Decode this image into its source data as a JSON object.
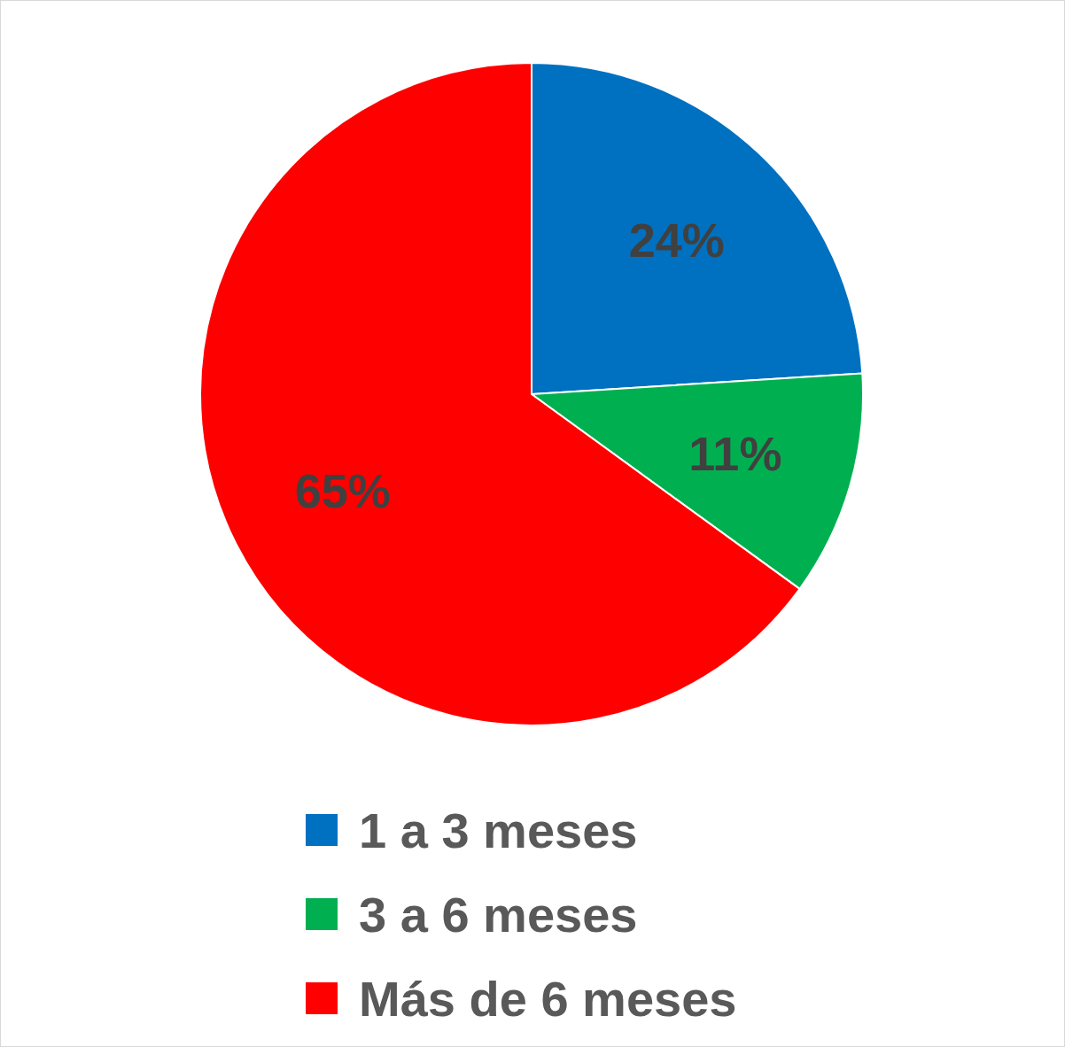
{
  "chart_data": {
    "type": "pie",
    "categories": [
      "1 a 3 meses",
      "3 a 6 meses",
      "Más de 6 meses"
    ],
    "values": [
      24,
      11,
      65
    ],
    "colors": [
      "#0070c0",
      "#00b050",
      "#ff0000"
    ],
    "value_labels": [
      "24%",
      "11%",
      "65%"
    ],
    "legend": "bottom"
  }
}
